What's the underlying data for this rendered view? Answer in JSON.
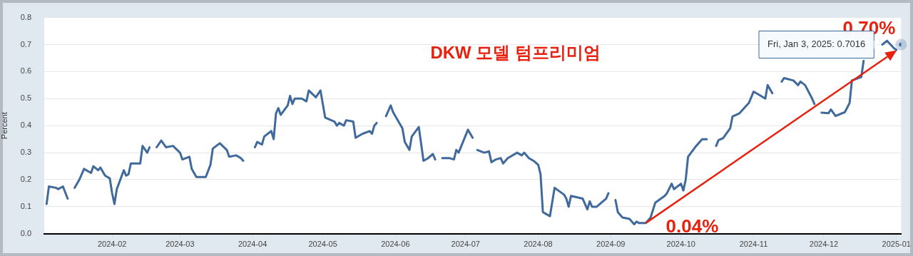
{
  "chart_data": {
    "type": "line",
    "title": "DKW 모델 텀프리미엄",
    "ylabel": "Percent",
    "x": [
      "2024-01-04",
      "2024-01-05",
      "2024-01-08",
      "2024-01-09",
      "2024-01-11",
      "2024-01-13",
      "2024-01-15",
      "2024-01-16",
      "2024-01-18",
      "2024-01-20",
      "2024-01-23",
      "2024-01-24",
      "2024-01-26",
      "2024-01-27",
      "2024-01-29",
      "2024-01-31",
      "2024-02-01",
      "2024-02-02",
      "2024-02-03",
      "2024-02-06",
      "2024-02-07",
      "2024-02-08",
      "2024-02-09",
      "2024-02-13",
      "2024-02-14",
      "2024-02-16",
      "2024-02-17",
      "2024-02-19",
      "2024-02-20",
      "2024-02-22",
      "2024-02-24",
      "2024-02-27",
      "2024-03-01",
      "2024-03-02",
      "2024-03-05",
      "2024-03-06",
      "2024-03-08",
      "2024-03-12",
      "2024-03-14",
      "2024-03-15",
      "2024-03-18",
      "2024-03-21",
      "2024-03-22",
      "2024-03-25",
      "2024-03-27",
      "2024-03-28",
      "2024-03-31",
      "2024-04-02",
      "2024-04-03",
      "2024-04-05",
      "2024-04-06",
      "2024-04-09",
      "2024-04-10",
      "2024-04-11",
      "2024-04-12",
      "2024-04-13",
      "2024-04-16",
      "2024-04-17",
      "2024-04-18",
      "2024-04-19",
      "2024-04-22",
      "2024-04-24",
      "2024-04-25",
      "2024-04-28",
      "2024-04-30",
      "2024-05-02",
      "2024-05-06",
      "2024-05-07",
      "2024-05-08",
      "2024-05-10",
      "2024-05-11",
      "2024-05-14",
      "2024-05-15",
      "2024-05-18",
      "2024-05-21",
      "2024-05-22",
      "2024-05-23",
      "2024-05-24",
      "2024-05-26",
      "2024-05-28",
      "2024-05-30",
      "2024-05-31",
      "2024-06-04",
      "2024-06-05",
      "2024-06-07",
      "2024-06-08",
      "2024-06-11",
      "2024-06-13",
      "2024-06-15",
      "2024-06-17",
      "2024-06-18",
      "2024-06-20",
      "2024-06-21",
      "2024-06-24",
      "2024-06-26",
      "2024-06-27",
      "2024-06-28",
      "2024-07-02",
      "2024-07-04",
      "2024-07-05",
      "2024-07-06",
      "2024-07-09",
      "2024-07-11",
      "2024-07-12",
      "2024-07-14",
      "2024-07-16",
      "2024-07-17",
      "2024-07-19",
      "2024-07-23",
      "2024-07-25",
      "2024-07-26",
      "2024-07-28",
      "2024-07-30",
      "2024-08-01",
      "2024-08-02",
      "2024-08-03",
      "2024-08-06",
      "2024-08-08",
      "2024-08-12",
      "2024-08-13",
      "2024-08-14",
      "2024-08-15",
      "2024-08-20",
      "2024-08-22",
      "2024-08-23",
      "2024-08-24",
      "2024-08-26",
      "2024-08-28",
      "2024-08-30",
      "2024-08-31",
      "2024-09-02",
      "2024-09-03",
      "2024-09-04",
      "2024-09-06",
      "2024-09-09",
      "2024-09-11",
      "2024-09-12",
      "2024-09-13",
      "2024-09-16",
      "2024-09-18",
      "2024-09-20",
      "2024-09-24",
      "2024-09-25",
      "2024-09-27",
      "2024-09-28",
      "2024-10-01",
      "2024-10-02",
      "2024-10-03",
      "2024-10-04",
      "2024-10-07",
      "2024-10-09",
      "2024-10-10",
      "2024-10-12",
      "2024-10-14",
      "2024-10-16",
      "2024-10-17",
      "2024-10-19",
      "2024-10-22",
      "2024-10-23",
      "2024-10-26",
      "2024-10-30",
      "2024-11-01",
      "2024-11-03",
      "2024-11-06",
      "2024-11-07",
      "2024-11-09",
      "2024-11-11",
      "2024-11-13",
      "2024-11-14",
      "2024-11-18",
      "2024-11-20",
      "2024-11-21",
      "2024-11-23",
      "2024-11-26",
      "2024-11-27",
      "2024-11-29",
      "2024-11-30",
      "2024-12-03",
      "2024-12-04",
      "2024-12-06",
      "2024-12-10",
      "2024-12-12",
      "2024-12-13",
      "2024-12-17",
      "2024-12-18",
      "2024-12-21",
      "2024-12-26",
      "2024-12-28",
      "2024-12-31",
      "2025-01-01",
      "2025-01-02",
      "2025-01-03"
    ],
    "series": [
      {
        "color": "#40699c",
        "values": [
          0.11,
          0.175,
          0.17,
          0.165,
          0.175,
          0.13,
          null,
          0.17,
          0.2,
          0.24,
          0.225,
          0.25,
          0.235,
          0.245,
          0.215,
          0.205,
          0.15,
          0.11,
          0.165,
          0.235,
          0.215,
          0.22,
          0.26,
          0.26,
          0.325,
          0.3,
          0.32,
          null,
          0.32,
          0.345,
          0.32,
          0.325,
          0.3,
          0.275,
          0.285,
          0.24,
          0.21,
          0.21,
          0.255,
          0.315,
          0.335,
          0.31,
          0.285,
          0.29,
          0.28,
          0.27,
          null,
          0.32,
          0.34,
          0.33,
          0.36,
          0.38,
          0.35,
          0.445,
          0.465,
          0.44,
          0.475,
          0.51,
          0.48,
          0.5,
          0.5,
          0.49,
          0.53,
          0.505,
          0.53,
          0.43,
          0.415,
          0.4,
          0.41,
          0.4,
          0.42,
          0.415,
          0.355,
          0.37,
          0.38,
          0.37,
          0.4,
          0.41,
          null,
          0.435,
          0.475,
          0.45,
          0.39,
          0.34,
          0.31,
          0.36,
          0.395,
          0.27,
          0.28,
          0.295,
          0.275,
          null,
          0.28,
          0.28,
          0.275,
          0.31,
          0.3,
          0.385,
          0.355,
          null,
          0.31,
          0.3,
          0.305,
          0.265,
          0.275,
          0.28,
          0.26,
          0.28,
          0.3,
          0.29,
          0.3,
          0.28,
          0.27,
          0.255,
          0.22,
          0.08,
          0.065,
          0.17,
          0.145,
          0.13,
          0.1,
          0.14,
          0.13,
          0.09,
          0.12,
          0.1,
          0.1,
          0.115,
          0.13,
          0.15,
          null,
          0.125,
          0.08,
          0.06,
          0.055,
          0.035,
          0.045,
          0.04,
          0.04,
          0.06,
          0.115,
          0.14,
          0.15,
          0.185,
          0.165,
          0.185,
          0.16,
          0.2,
          0.285,
          0.32,
          0.34,
          0.35,
          0.35,
          null,
          0.325,
          0.346,
          0.354,
          0.39,
          0.434,
          0.446,
          0.484,
          0.526,
          0.516,
          0.5,
          0.55,
          0.52,
          null,
          0.563,
          0.576,
          0.567,
          0.55,
          0.563,
          0.55,
          0.5,
          0.48,
          null,
          0.448,
          0.446,
          0.46,
          0.436,
          0.45,
          0.484,
          0.567,
          0.58,
          0.64,
          null,
          0.7,
          0.714,
          0.686,
          0.68,
          null,
          0.7
        ]
      }
    ],
    "xlim": [
      "2024-01-03",
      "2025-01-03"
    ],
    "xticks": [
      {
        "value": "2024-02-01",
        "label": "2024-02"
      },
      {
        "value": "2024-03-01",
        "label": "2024-03"
      },
      {
        "value": "2024-04-01",
        "label": "2024-04"
      },
      {
        "value": "2024-05-01",
        "label": "2024-05"
      },
      {
        "value": "2024-06-01",
        "label": "2024-06"
      },
      {
        "value": "2024-07-01",
        "label": "2024-07"
      },
      {
        "value": "2024-08-01",
        "label": "2024-08"
      },
      {
        "value": "2024-09-01",
        "label": "2024-09"
      },
      {
        "value": "2024-10-01",
        "label": "2024-10"
      },
      {
        "value": "2024-11-01",
        "label": "2024-11"
      },
      {
        "value": "2024-12-01",
        "label": "2024-12"
      },
      {
        "value": "2025-01-01",
        "label": "2025-01"
      }
    ],
    "ylim": [
      0,
      0.8
    ],
    "yticks": [
      {
        "value": 0,
        "label": "0.0"
      },
      0.1,
      0.2,
      0.3,
      0.4,
      0.5,
      0.6,
      0.7,
      0.8
    ],
    "grid": "y",
    "annotations": [
      {
        "text": "0.04%",
        "x": "2024-09-16",
        "y": 0.04
      },
      {
        "text": "0.70%",
        "x": "2025-01-03",
        "y": 0.7
      },
      "Fri, Jan 3, 2025: 0.7016"
    ]
  }
}
